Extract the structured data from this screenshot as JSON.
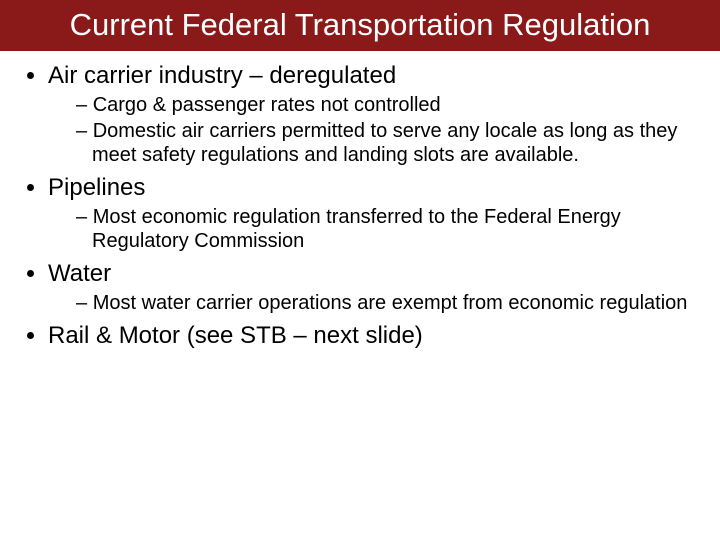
{
  "colors": {
    "title_bg": "#8a1a1a",
    "title_text": "#ffffff",
    "body_text": "#000000",
    "page_bg": "#ffffff"
  },
  "typography": {
    "title_fontsize": 31,
    "bullet1_fontsize": 24,
    "bullet2_fontsize": 20,
    "font_family": "Arial"
  },
  "title": "Current Federal Transportation Regulation",
  "sections": [
    {
      "heading": "Air carrier industry – deregulated",
      "subs": [
        "Cargo & passenger rates not controlled",
        "Domestic air carriers permitted to serve any locale as long as they meet safety regulations and landing slots are available."
      ]
    },
    {
      "heading": "Pipelines",
      "subs": [
        "Most economic regulation transferred to the Federal Energy Regulatory Commission"
      ]
    },
    {
      "heading": "Water",
      "subs": [
        "Most water carrier operations are exempt from economic regulation"
      ]
    },
    {
      "heading": "Rail & Motor (see STB – next slide)",
      "subs": []
    }
  ]
}
